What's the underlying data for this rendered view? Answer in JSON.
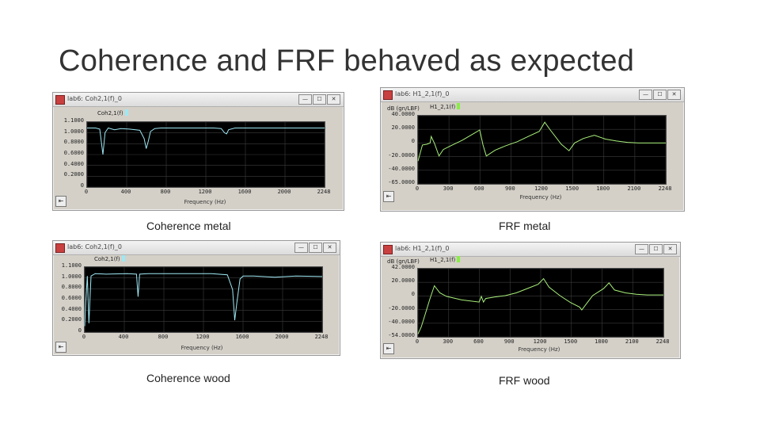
{
  "slide": {
    "title": "Coherence and FRF behaved as expected"
  },
  "window_buttons": {
    "minimize": "—",
    "maximize": "☐",
    "close": "✕"
  },
  "panels": [
    {
      "id": "coh-metal",
      "window_title": "lab6: Coh2,1(f)_0",
      "legend": "Coh2,1(f)",
      "legend_color": "#9ee8f4",
      "unit": "",
      "caption": "Coherence metal",
      "xlabel": "Frequency (Hz)",
      "trace_color": "#9ee8f4",
      "yticks": [
        "1.1000",
        "1.0000",
        "0.8000",
        "0.6000",
        "0.4000",
        "0.2000",
        "0"
      ],
      "xticks": [
        "0",
        "400",
        "800",
        "1200",
        "1600",
        "2000",
        "2248"
      ],
      "chart_data": {
        "type": "line",
        "title": "",
        "xlabel": "Frequency (Hz)",
        "ylabel": "",
        "xlim": [
          0,
          2248
        ],
        "ylim": [
          0,
          1.1
        ],
        "series": [
          {
            "name": "Coh2,1(f)",
            "x": [
              0,
              80,
              120,
              150,
              170,
              200,
              260,
              320,
              400,
              500,
              540,
              560,
              580,
              600,
              640,
              700,
              800,
              900,
              1000,
              1100,
              1200,
              1270,
              1300,
              1320,
              1340,
              1400,
              1600,
              1800,
              2000,
              2248
            ],
            "y": [
              1.0,
              1.0,
              0.98,
              0.55,
              0.92,
              1.0,
              0.97,
              0.99,
              0.98,
              0.96,
              0.82,
              0.65,
              0.78,
              0.94,
              0.99,
              1.0,
              1.0,
              1.0,
              1.0,
              1.0,
              1.0,
              0.99,
              0.92,
              0.9,
              0.97,
              1.0,
              1.0,
              1.0,
              1.0,
              1.0
            ]
          }
        ]
      }
    },
    {
      "id": "frf-metal",
      "window_title": "lab6: H1_2,1(f)_0",
      "legend": "H1_2,1(f)",
      "legend_color": "#88ee44",
      "unit": "dB (gn/LBF)",
      "caption": "FRF metal",
      "xlabel": "Frequency (Hz)",
      "trace_color": "#a8f07a",
      "yticks": [
        "40.0000",
        "20.0000",
        "0",
        "-20.0000",
        "-40.0000",
        "-65.0000"
      ],
      "xticks": [
        "0",
        "300",
        "600",
        "900",
        "1200",
        "1500",
        "1800",
        "2100",
        "2248"
      ],
      "chart_data": {
        "type": "line",
        "title": "",
        "xlabel": "Frequency (Hz)",
        "ylabel": "dB (gn/LBF)",
        "xlim": [
          0,
          2248
        ],
        "ylim": [
          -65,
          40
        ],
        "series": [
          {
            "name": "H1_2,1(f)",
            "x": [
              0,
              40,
              80,
              110,
              120,
              150,
              190,
              230,
              300,
              400,
              500,
              560,
              590,
              620,
              700,
              800,
              900,
              1000,
              1100,
              1150,
              1200,
              1300,
              1370,
              1420,
              1500,
              1600,
              1700,
              1800,
              1900,
              2000,
              2100,
              2248
            ],
            "y": [
              -30,
              -5,
              -4,
              -2,
              8,
              -3,
              -22,
              -12,
              -6,
              2,
              12,
              18,
              -5,
              -22,
              -13,
              -6,
              0,
              8,
              16,
              30,
              18,
              -4,
              -14,
              -2,
              5,
              10,
              4,
              1,
              -1,
              -2,
              -2,
              -2
            ]
          }
        ]
      }
    },
    {
      "id": "coh-wood",
      "window_title": "lab6: Coh2,1(f)_0",
      "legend": "Coh2,1(f)",
      "legend_color": "#9ee8f4",
      "unit": "",
      "caption": "Coherence wood",
      "xlabel": "Frequency (Hz)",
      "trace_color": "#9ee8f4",
      "yticks": [
        "1.1000",
        "1.0000",
        "0.8000",
        "0.6000",
        "0.4000",
        "0.2000",
        "0"
      ],
      "xticks": [
        "0",
        "400",
        "800",
        "1200",
        "1600",
        "2000",
        "2248"
      ],
      "chart_data": {
        "type": "line",
        "title": "",
        "xlabel": "Frequency (Hz)",
        "ylabel": "",
        "xlim": [
          0,
          2248
        ],
        "ylim": [
          0,
          1.1
        ],
        "series": [
          {
            "name": "Coh2,1(f)",
            "x": [
              0,
              10,
              25,
              40,
              60,
              100,
              200,
              400,
              490,
              505,
              520,
              600,
              800,
              1000,
              1200,
              1350,
              1400,
              1420,
              1440,
              1470,
              1500,
              1600,
              1800,
              2000,
              2248
            ],
            "y": [
              0.1,
              0.5,
              0.95,
              0.15,
              0.95,
              0.99,
              0.98,
              0.99,
              0.98,
              0.6,
              0.98,
              0.99,
              0.99,
              0.99,
              0.99,
              0.97,
              0.72,
              0.2,
              0.5,
              0.9,
              0.95,
              0.95,
              0.93,
              0.95,
              0.94
            ]
          }
        ]
      }
    },
    {
      "id": "frf-wood",
      "window_title": "lab6: H1_2,1(f)_0",
      "legend": "H1_2,1(f)",
      "legend_color": "#88ee44",
      "unit": "dB (gn/LBF)",
      "caption": "FRF wood",
      "xlabel": "Frequency (Hz)",
      "trace_color": "#a8f07a",
      "yticks": [
        "42.0000",
        "20.0000",
        "0",
        "-20.0000",
        "-40.0000",
        "-54.0000"
      ],
      "xticks": [
        "0",
        "300",
        "600",
        "900",
        "1200",
        "1500",
        "1800",
        "2100",
        "2248"
      ],
      "chart_data": {
        "type": "line",
        "title": "",
        "xlabel": "Frequency (Hz)",
        "ylabel": "dB (gn/LBF)",
        "xlim": [
          0,
          2248
        ],
        "ylim": [
          -54,
          42
        ],
        "series": [
          {
            "name": "H1_2,1(f)",
            "x": [
              0,
              30,
              70,
              110,
              150,
              200,
              260,
              400,
              560,
              580,
              600,
              620,
              700,
              800,
              900,
              1000,
              1100,
              1150,
              1200,
              1300,
              1400,
              1480,
              1500,
              1560,
              1600,
              1700,
              1750,
              1800,
              1900,
              2000,
              2100,
              2248
            ],
            "y": [
              -50,
              -40,
              -20,
              0,
              18,
              8,
              3,
              -2,
              -5,
              3,
              -5,
              0,
              2,
              4,
              8,
              14,
              20,
              28,
              16,
              4,
              -6,
              -12,
              -16,
              -4,
              4,
              14,
              22,
              12,
              8,
              6,
              5,
              5
            ]
          }
        ]
      }
    }
  ]
}
